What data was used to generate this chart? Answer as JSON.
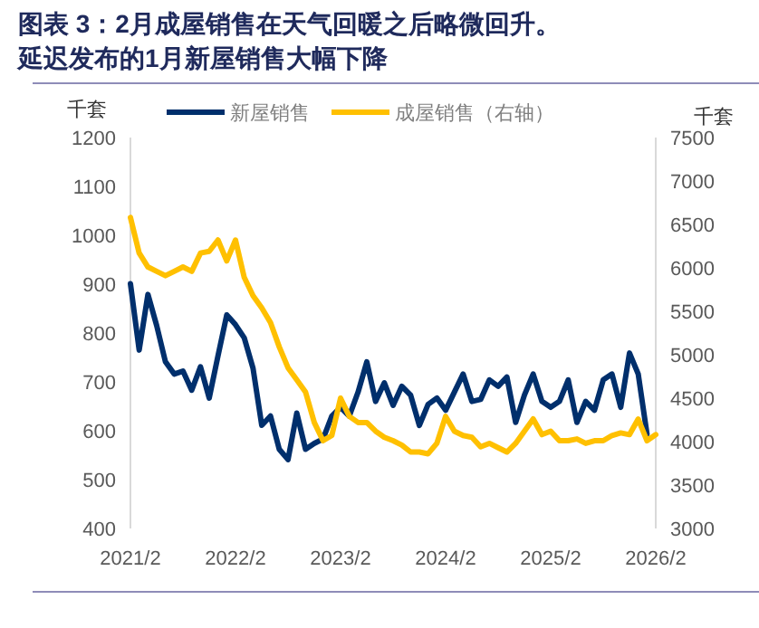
{
  "chart_data": {
    "type": "line",
    "title": "图表 3：2月成屋销售在天气回暖之后略微回升。延迟发布的1月新屋销售大幅下降",
    "ylabel": "千套",
    "y2label": "千套",
    "legend": "top",
    "grid": false,
    "marker": "none",
    "line_style": "solid",
    "x": [
      "2021-02",
      "2021-03",
      "2021-04",
      "2021-05",
      "2021-06",
      "2021-07",
      "2021-08",
      "2021-09",
      "2021-10",
      "2021-11",
      "2021-12",
      "2022-01",
      "2022-02",
      "2022-03",
      "2022-04",
      "2022-05",
      "2022-06",
      "2022-07",
      "2022-08",
      "2022-09",
      "2022-10",
      "2022-11",
      "2022-12",
      "2023-01",
      "2023-02",
      "2023-03",
      "2023-04",
      "2023-05",
      "2023-06",
      "2023-07",
      "2023-08",
      "2023-09",
      "2023-10",
      "2023-11",
      "2023-12",
      "2024-01",
      "2024-02",
      "2024-03",
      "2024-04",
      "2024-05",
      "2024-06",
      "2024-07",
      "2024-08",
      "2024-09",
      "2024-10",
      "2024-11",
      "2024-12",
      "2025-01",
      "2025-02",
      "2025-03",
      "2025-04",
      "2025-05",
      "2025-06",
      "2025-07",
      "2025-08",
      "2025-09",
      "2025-10",
      "2025-11",
      "2025-12",
      "2026-01",
      "2026-02"
    ],
    "xlim": [
      "2021-02",
      "2026-02"
    ],
    "xticks": [
      {
        "value": "2021-02",
        "label": "2021/2"
      },
      {
        "value": "2022-02",
        "label": "2022/2"
      },
      {
        "value": "2023-02",
        "label": "2023/2"
      },
      {
        "value": "2024-02",
        "label": "2024/2"
      },
      {
        "value": "2025-02",
        "label": "2025/2"
      },
      {
        "value": "2026-02",
        "label": "2026/2"
      }
    ],
    "ylim": [
      400,
      1200
    ],
    "yticks": [
      400,
      500,
      600,
      700,
      800,
      900,
      1000,
      1100,
      1200
    ],
    "y2lim": [
      3000,
      7500
    ],
    "y2ticks": [
      3000,
      3500,
      4000,
      4500,
      5000,
      5500,
      6000,
      6500,
      7000,
      7500
    ],
    "series": [
      {
        "name": "新屋销售",
        "color": "#002f6c",
        "values": [
          901,
          765,
          879,
          815,
          741,
          716,
          722,
          683,
          731,
          667,
          753,
          837,
          817,
          790,
          728,
          611,
          630,
          562,
          541,
          636,
          562,
          574,
          583,
          630,
          648,
          630,
          679,
          741,
          660,
          698,
          652,
          691,
          673,
          611,
          654,
          667,
          642,
          679,
          716,
          660,
          664,
          704,
          691,
          710,
          617,
          673,
          716,
          660,
          648,
          660,
          704,
          617,
          660,
          642,
          704,
          716,
          648,
          759,
          716,
          593,
          null
        ]
      },
      {
        "name": "成屋销售（右轴）",
        "color": "#ffc000",
        "axis": "y2",
        "values": [
          6580,
          6170,
          6010,
          5960,
          5910,
          5960,
          6010,
          5960,
          6170,
          6190,
          6320,
          6080,
          6320,
          5890,
          5680,
          5540,
          5370,
          5090,
          4850,
          4710,
          4570,
          4220,
          4010,
          4070,
          4500,
          4290,
          4220,
          4220,
          4120,
          4050,
          4010,
          3960,
          3880,
          3880,
          3860,
          3980,
          4290,
          4120,
          4070,
          4050,
          3940,
          3980,
          3930,
          3880,
          3980,
          4120,
          4260,
          4080,
          4120,
          4010,
          4010,
          4030,
          3980,
          4010,
          4010,
          4070,
          4100,
          4080,
          4260,
          4010,
          4080
        ]
      }
    ]
  }
}
